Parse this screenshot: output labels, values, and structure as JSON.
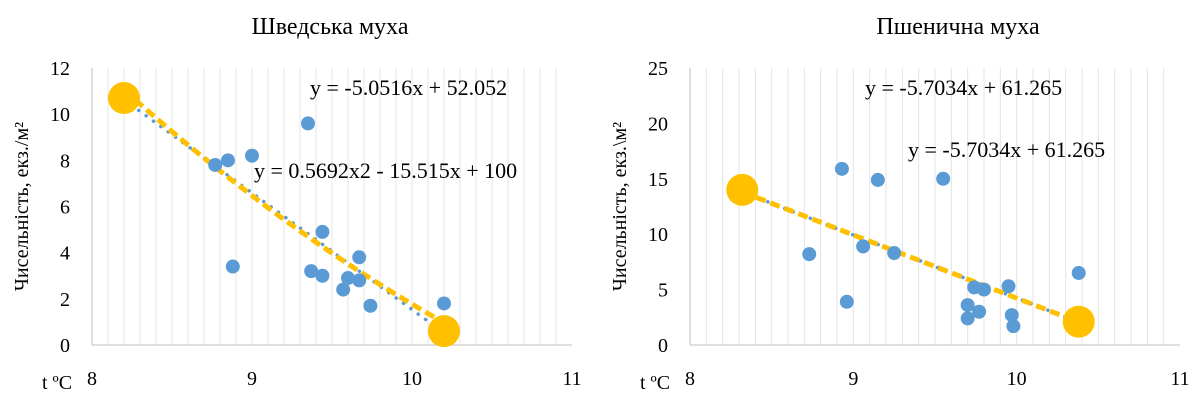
{
  "colors": {
    "points": "#5b9bd5",
    "highlight": "#ffc000",
    "trend_dotted": "#5b9bd5",
    "trend_dashed": "#ffc000",
    "grid": "#e4e4e4",
    "axis": "#bfbfbf"
  },
  "chart_data": [
    {
      "type": "scatter",
      "title": "Шведська муха",
      "xlabel": "t ºC",
      "ylabel": "Чисельність, екз./м²",
      "xlim": [
        8,
        11
      ],
      "ylim": [
        0,
        12
      ],
      "x_ticks": [
        "8",
        "9",
        "10",
        "11"
      ],
      "y_ticks": [
        "0",
        "2",
        "4",
        "6",
        "8",
        "10",
        "12"
      ],
      "x_tick_values": [
        8,
        9,
        10,
        11
      ],
      "y_tick_values": [
        0,
        2,
        4,
        6,
        8,
        10,
        12
      ],
      "grid": "vertical",
      "series": [
        {
          "points": [
            [
              8.77,
              7.8
            ],
            [
              8.85,
              8.0
            ],
            [
              9.0,
              8.2
            ],
            [
              8.88,
              3.4
            ],
            [
              9.35,
              9.6
            ],
            [
              9.37,
              3.2
            ],
            [
              9.44,
              3.0
            ],
            [
              9.44,
              4.9
            ],
            [
              9.57,
              2.4
            ],
            [
              9.6,
              2.9
            ],
            [
              9.67,
              3.8
            ],
            [
              9.67,
              2.8
            ],
            [
              9.74,
              1.7
            ],
            [
              10.2,
              1.8
            ]
          ]
        },
        {
          "points": [
            [
              8.2,
              10.7
            ],
            [
              10.2,
              0.6
            ]
          ]
        }
      ],
      "trendlines": [
        {
          "label": "y = -5.0516x + 52.052",
          "style": "dotted",
          "fn": "linear",
          "coef": [
            52.052,
            -5.0516
          ],
          "x_range": [
            8.2,
            10.2
          ]
        },
        {
          "label": "y = 0.5692x2 - 15.515x + 100",
          "style": "dashed",
          "fn": "poly",
          "coef": [
            100,
            -15.515,
            0.5692
          ],
          "x_range": [
            8.2,
            10.2
          ]
        }
      ]
    },
    {
      "type": "scatter",
      "title": "Пшенична муха",
      "xlabel": "t ºC",
      "ylabel": "Чисельність, екз.\\м²",
      "xlim": [
        8,
        11
      ],
      "ylim": [
        0,
        25
      ],
      "x_ticks": [
        "8",
        "9",
        "10",
        "11"
      ],
      "y_ticks": [
        "0",
        "5",
        "10",
        "15",
        "20",
        "25"
      ],
      "x_tick_values": [
        8,
        9,
        10,
        11
      ],
      "y_tick_values": [
        0,
        5,
        10,
        15,
        20,
        25
      ],
      "grid": "vertical",
      "series": [
        {
          "points": [
            [
              8.73,
              8.2
            ],
            [
              8.93,
              15.9
            ],
            [
              8.96,
              3.9
            ],
            [
              9.06,
              8.9
            ],
            [
              9.15,
              14.9
            ],
            [
              9.25,
              8.3
            ],
            [
              9.55,
              15.0
            ],
            [
              9.7,
              3.6
            ],
            [
              9.7,
              2.4
            ],
            [
              9.74,
              5.2
            ],
            [
              9.77,
              3.0
            ],
            [
              9.8,
              5.0
            ],
            [
              9.95,
              5.3
            ],
            [
              9.97,
              2.7
            ],
            [
              9.98,
              1.7
            ],
            [
              10.38,
              6.5
            ]
          ]
        },
        {
          "points": [
            [
              8.32,
              14.0
            ],
            [
              10.38,
              2.1
            ]
          ]
        }
      ],
      "trendlines": [
        {
          "label": "y = -5.7034x + 61.265",
          "style": "dotted",
          "fn": "linear",
          "coef": [
            61.265,
            -5.7034
          ],
          "x_range": [
            8.32,
            10.38
          ]
        },
        {
          "label": "y = -5.7034x + 61.265",
          "style": "dashed",
          "fn": "linear",
          "coef": [
            61.265,
            -5.7034
          ],
          "x_range": [
            8.32,
            10.38
          ]
        }
      ]
    }
  ]
}
